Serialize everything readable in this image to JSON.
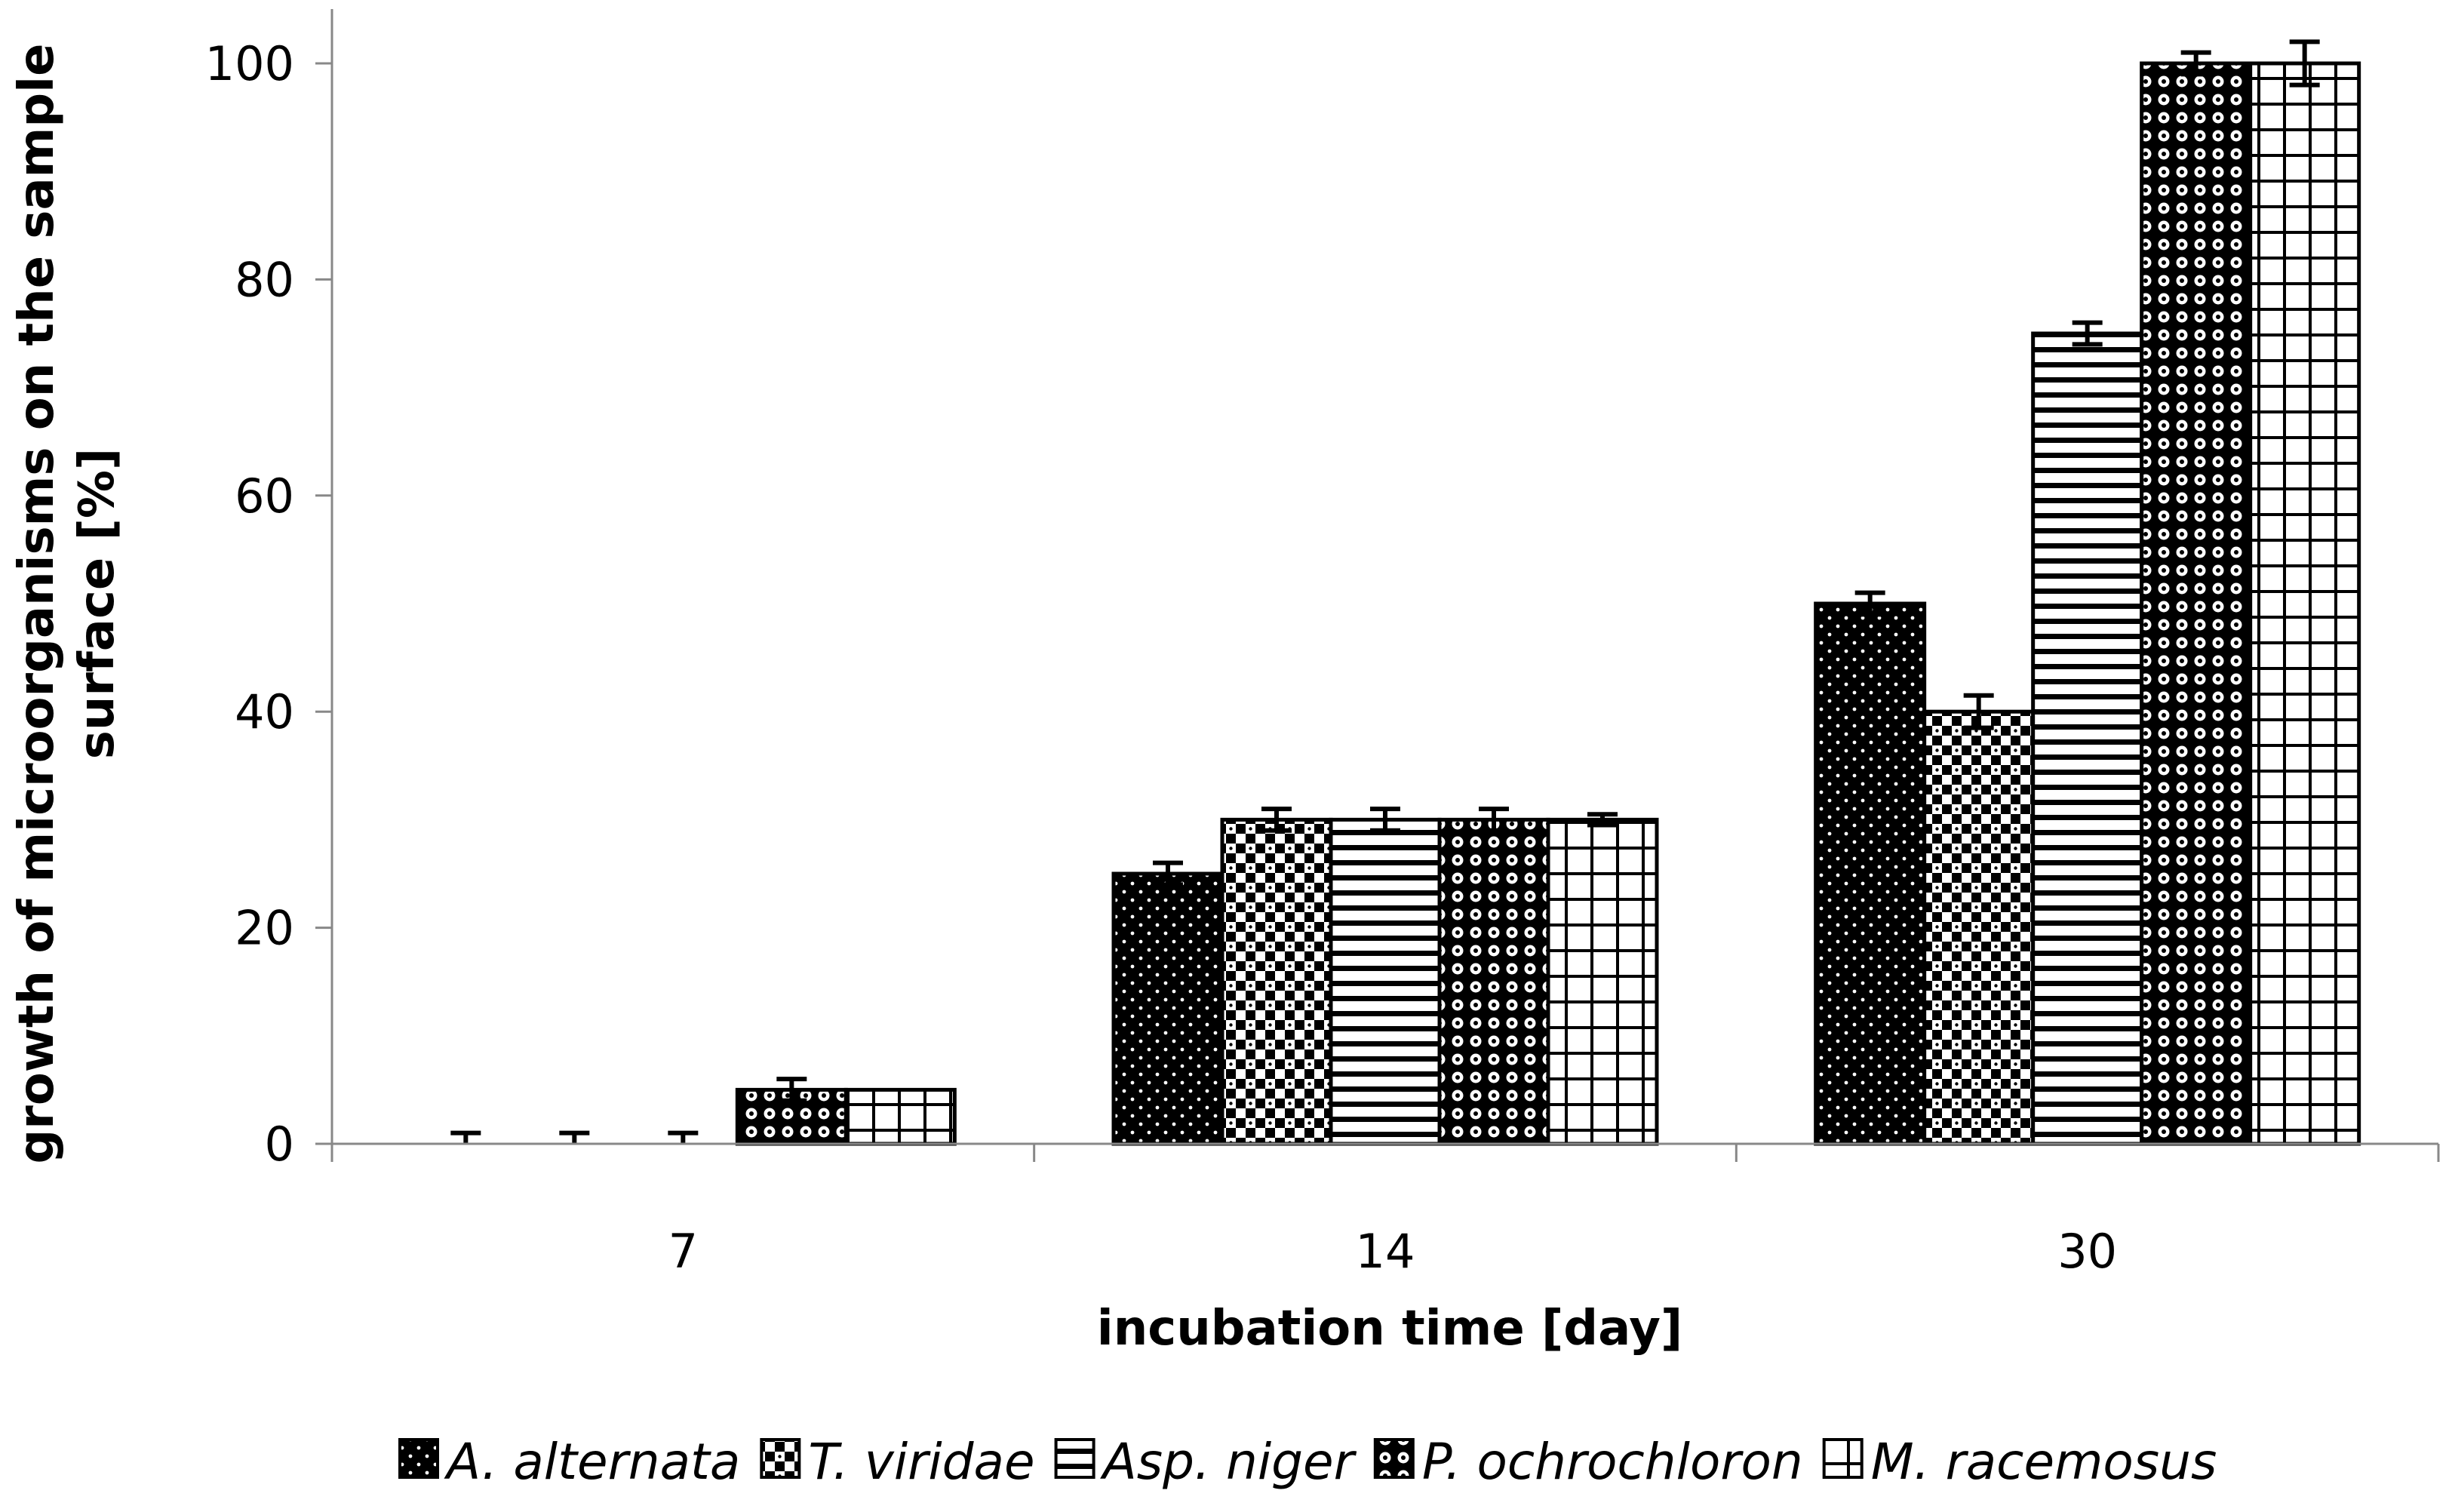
{
  "chart_data": {
    "type": "bar",
    "xlabel": "incubation time [day]",
    "ylabel": "growth of microorganisms on the sample surface [%]",
    "ylabel_lines": [
      "growth of microorganisms on the sample",
      "surface [%]"
    ],
    "ylim": [
      0,
      100
    ],
    "yticks": [
      0,
      20,
      40,
      60,
      80,
      100
    ],
    "grid": false,
    "legend_position": "bottom",
    "categories": [
      "7",
      "14",
      "30"
    ],
    "series": [
      {
        "name": "A. alternata",
        "values": [
          0,
          25,
          50
        ],
        "errors": [
          1,
          1,
          1
        ],
        "pattern": "dots-on-black"
      },
      {
        "name": "T. viridae",
        "values": [
          0,
          30,
          40
        ],
        "errors": [
          1,
          1,
          1.5
        ],
        "pattern": "checker"
      },
      {
        "name": "Asp. niger",
        "values": [
          0,
          30,
          75
        ],
        "errors": [
          1,
          1,
          1
        ],
        "pattern": "horizontal-lines"
      },
      {
        "name": "P. ochrochloron",
        "values": [
          5,
          30,
          100
        ],
        "errors": [
          1,
          1,
          1
        ],
        "pattern": "circles"
      },
      {
        "name": "M. racemosus",
        "values": [
          5,
          30,
          100
        ],
        "errors": [
          0,
          0.5,
          2
        ],
        "pattern": "grid"
      }
    ]
  }
}
